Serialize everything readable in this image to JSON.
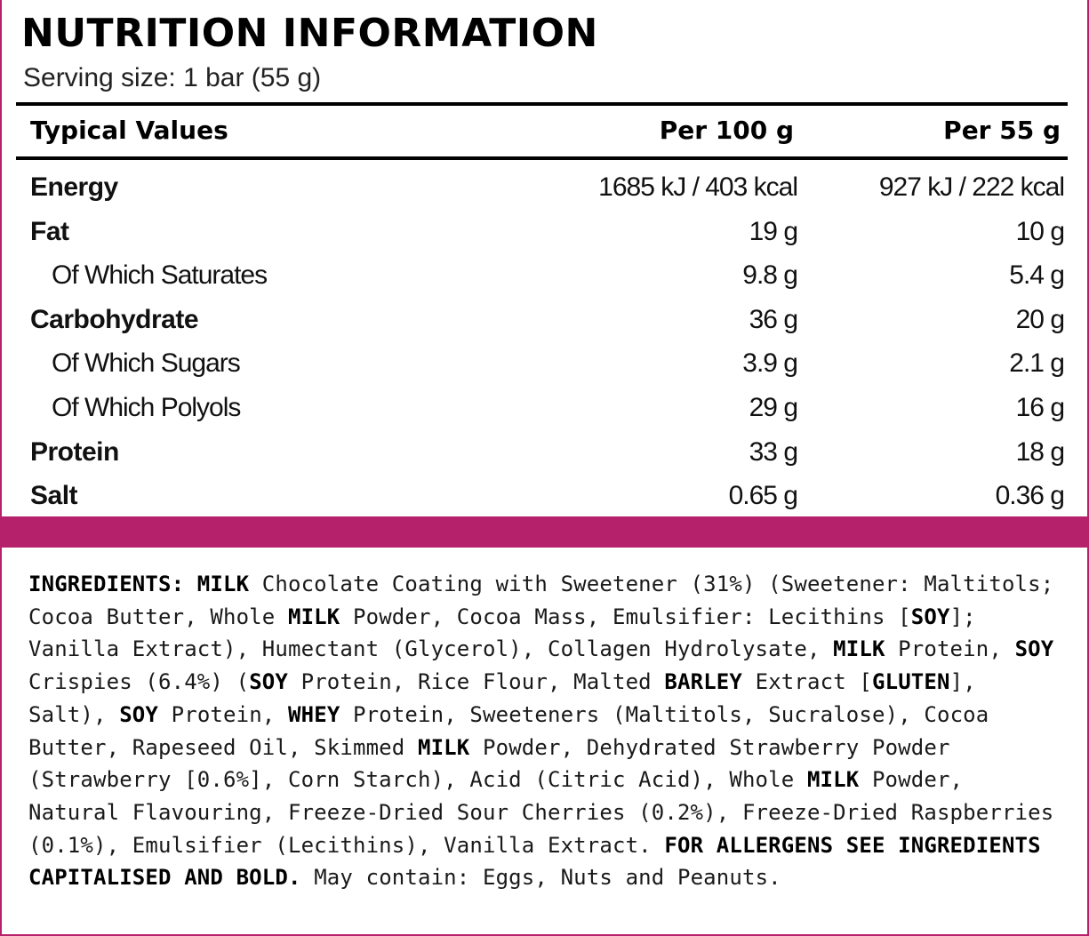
{
  "colors": {
    "accent": "#b5226b",
    "panel": "#ffffff",
    "text": "#111111"
  },
  "nutrition": {
    "title": "NUTRITION INFORMATION",
    "serving_size": "Serving size: 1 bar (55 g)",
    "headers": {
      "label": "Typical Values",
      "per_100": "Per 100 g",
      "per_serving": "Per 55 g"
    },
    "rows": [
      {
        "label": "Energy",
        "per_100": "1685 kJ / 403 kcal",
        "per_serving": "927 kJ / 222 kcal",
        "level": "main"
      },
      {
        "label": "Fat",
        "per_100": "19 g",
        "per_serving": "10 g",
        "level": "main"
      },
      {
        "label": "Of Which Saturates",
        "per_100": "9.8 g",
        "per_serving": "5.4 g",
        "level": "sub"
      },
      {
        "label": "Carbohydrate",
        "per_100": "36 g",
        "per_serving": "20 g",
        "level": "main"
      },
      {
        "label": "Of Which Sugars",
        "per_100": "3.9 g",
        "per_serving": "2.1 g",
        "level": "sub"
      },
      {
        "label": "Of Which Polyols",
        "per_100": "29 g",
        "per_serving": "16 g",
        "level": "sub"
      },
      {
        "label": "Protein",
        "per_100": "33 g",
        "per_serving": "18 g",
        "level": "main"
      },
      {
        "label": "Salt",
        "per_100": "0.65 g",
        "per_serving": "0.36 g",
        "level": "main"
      }
    ]
  },
  "ingredients": {
    "segments": [
      {
        "text": "INGREDIENTS: MILK",
        "bold": true
      },
      {
        "text": " Chocolate Coating with Sweetener (31%) (Sweetener: Maltitols; Cocoa Butter, Whole ",
        "bold": false
      },
      {
        "text": "MILK",
        "bold": true
      },
      {
        "text": " Powder, Cocoa Mass, Emulsifier: Lecithins [",
        "bold": false
      },
      {
        "text": "SOY",
        "bold": true
      },
      {
        "text": "]; Vanilla Extract), Humectant (Glycerol), Collagen Hydrolysate, ",
        "bold": false
      },
      {
        "text": "MILK",
        "bold": true
      },
      {
        "text": " Protein, ",
        "bold": false
      },
      {
        "text": "SOY",
        "bold": true
      },
      {
        "text": " Crispies (6.4%) (",
        "bold": false
      },
      {
        "text": "SOY",
        "bold": true
      },
      {
        "text": " Protein, Rice Flour, Malted ",
        "bold": false
      },
      {
        "text": "BARLEY",
        "bold": true
      },
      {
        "text": " Extract [",
        "bold": false
      },
      {
        "text": "GLUTEN",
        "bold": true
      },
      {
        "text": "], Salt), ",
        "bold": false
      },
      {
        "text": "SOY",
        "bold": true
      },
      {
        "text": " Protein, ",
        "bold": false
      },
      {
        "text": "WHEY",
        "bold": true
      },
      {
        "text": " Protein, Sweeteners (Maltitols, Sucralose), Cocoa Butter, Rapeseed Oil, Skimmed ",
        "bold": false
      },
      {
        "text": "MILK",
        "bold": true
      },
      {
        "text": " Powder, Dehydrated Strawberry Powder (Strawberry [0.6%], Corn Starch), Acid (Citric Acid), Whole ",
        "bold": false
      },
      {
        "text": "MILK",
        "bold": true
      },
      {
        "text": " Powder, Natural Flavouring, Freeze-Dried Sour Cherries (0.2%), Freeze-Dried Raspberries (0.1%), Emulsifier (Lecithins), Vanilla Extract. ",
        "bold": false
      },
      {
        "text": "FOR ALLERGENS SEE INGREDIENTS CAPITALISED AND BOLD.",
        "bold": true
      },
      {
        "text": " May contain: Eggs, Nuts and Peanuts.",
        "bold": false
      }
    ]
  }
}
